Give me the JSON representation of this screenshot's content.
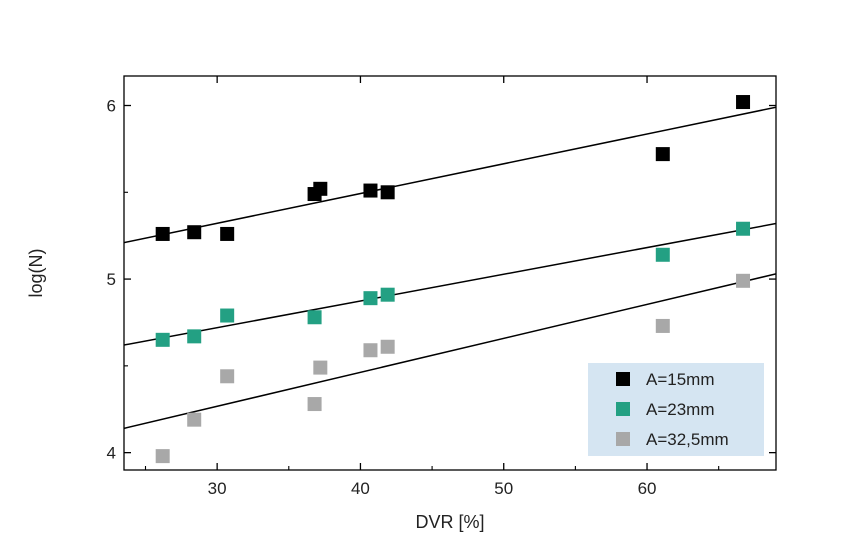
{
  "chart_data": {
    "type": "scatter",
    "xlabel": "DVR [%]",
    "ylabel": "log(N)",
    "xlim": [
      23.5,
      69
    ],
    "ylim": [
      3.9,
      6.17
    ],
    "x_ticks": [
      30,
      40,
      50,
      60
    ],
    "y_ticks": [
      4,
      5,
      6
    ],
    "grid": false,
    "legend_position": "bottom-right",
    "series": [
      {
        "name": "A=15mm",
        "color": "#000000",
        "marker": "square",
        "x": [
          26.2,
          28.4,
          30.7,
          36.8,
          37.2,
          40.7,
          41.9,
          61.1,
          66.7
        ],
        "y": [
          5.26,
          5.27,
          5.26,
          5.49,
          5.52,
          5.51,
          5.5,
          5.72,
          6.02
        ],
        "fit": {
          "x": [
            23.5,
            69
          ],
          "y": [
            5.21,
            5.99
          ]
        }
      },
      {
        "name": "A=23mm",
        "color": "#23A083",
        "marker": "square",
        "x": [
          26.2,
          28.4,
          30.7,
          36.8,
          40.7,
          41.9,
          61.1,
          66.7
        ],
        "y": [
          4.65,
          4.67,
          4.79,
          4.78,
          4.89,
          4.91,
          5.14,
          5.29
        ],
        "fit": {
          "x": [
            23.5,
            69
          ],
          "y": [
            4.62,
            5.32
          ]
        }
      },
      {
        "name": "A=32,5mm",
        "color": "#A8A8A8",
        "marker": "square",
        "x": [
          26.2,
          28.4,
          30.7,
          36.8,
          37.2,
          40.7,
          41.9,
          61.1,
          66.7
        ],
        "y": [
          3.98,
          4.19,
          4.44,
          4.28,
          4.49,
          4.59,
          4.61,
          4.73,
          4.99
        ],
        "fit": {
          "x": [
            23.5,
            69
          ],
          "y": [
            4.14,
            5.03
          ]
        }
      }
    ]
  },
  "colors": {
    "legend_background": "#D5E5F2",
    "axis": "#000000"
  }
}
